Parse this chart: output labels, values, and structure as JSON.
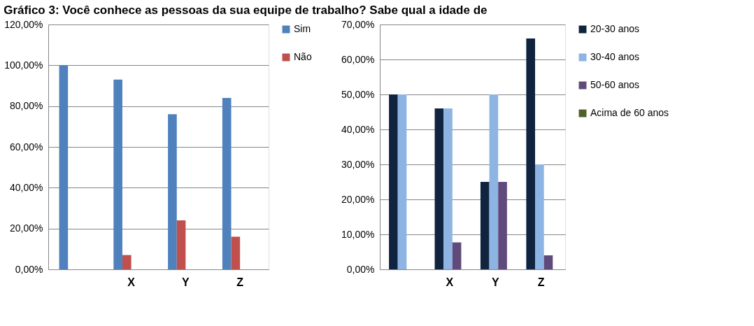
{
  "chart_data": [
    {
      "type": "bar",
      "title": "Gráfico 3: Você conhece as pessoas da sua equipe de trabalho? Sabe qual a idade de",
      "categories": [
        null,
        "X",
        "Y",
        "Z"
      ],
      "series": [
        {
          "name": "Sim",
          "color": "#4f81bd",
          "values": [
            100,
            93,
            76,
            84
          ]
        },
        {
          "name": "Não",
          "color": "#c0504d",
          "values": [
            0,
            7,
            24,
            16
          ]
        }
      ],
      "ylim": [
        0,
        120
      ],
      "yticks": [
        {
          "value": 0,
          "label": "0,00%"
        },
        {
          "value": 20,
          "label": "20,00%"
        },
        {
          "value": 40,
          "label": "40,00%"
        },
        {
          "value": 60,
          "label": "60,00%"
        },
        {
          "value": 80,
          "label": "80,00%"
        },
        {
          "value": 100,
          "label": "100,00%"
        },
        {
          "value": 120,
          "label": "120,00%"
        }
      ],
      "grid": "y",
      "legend": "right"
    },
    {
      "type": "bar",
      "categories": [
        null,
        "X",
        "Y",
        "Z"
      ],
      "series": [
        {
          "name": "20-30 anos",
          "color": "#10243f",
          "values": [
            50,
            46,
            25,
            66
          ]
        },
        {
          "name": "30-40 anos",
          "color": "#8eb4e3",
          "values": [
            50,
            46,
            50,
            30
          ]
        },
        {
          "name": "50-60 anos",
          "color": "#604a7b",
          "values": [
            0,
            7.7,
            25,
            4
          ]
        },
        {
          "name": "Acima de 60 anos",
          "color": "#4f6228",
          "values": [
            0,
            0,
            0,
            0
          ]
        }
      ],
      "ylim": [
        0,
        70
      ],
      "yticks": [
        {
          "value": 0,
          "label": "0,00%"
        },
        {
          "value": 10,
          "label": "10,00%"
        },
        {
          "value": 20,
          "label": "20,00%"
        },
        {
          "value": 30,
          "label": "30,00%"
        },
        {
          "value": 40,
          "label": "40,00%"
        },
        {
          "value": 50,
          "label": "50,00%"
        },
        {
          "value": 60,
          "label": "60,00%"
        },
        {
          "value": 70,
          "label": "70,00%"
        }
      ],
      "grid": "y",
      "legend": "right"
    }
  ]
}
